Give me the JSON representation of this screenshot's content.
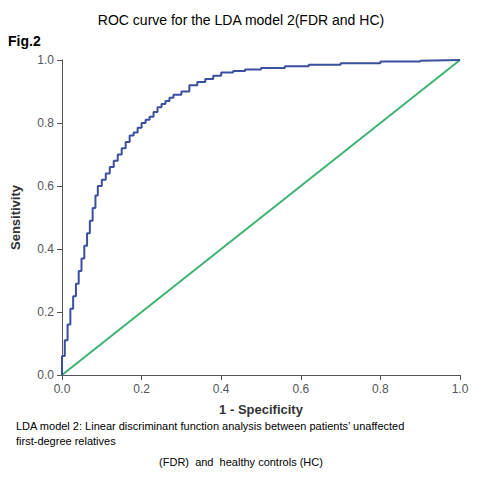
{
  "chart_data": {
    "type": "line",
    "title": "ROC curve for the LDA model 2(FDR and HC)",
    "xlabel": "1 - Specificity",
    "ylabel": "Sensitivity",
    "annotations": [
      "Fig.2",
      "LDA model 2: Linear discriminant function analysis between patients’ unaffected first-degree relatives",
      "(FDR)  and  healthy controls (HC)"
    ],
    "xlim": [
      0.0,
      1.0
    ],
    "ylim": [
      0.0,
      1.0
    ],
    "xticks": [
      {
        "value": 0.0,
        "label": "0.0"
      },
      0.2,
      0.4,
      0.6,
      0.8,
      {
        "value": 1.0,
        "label": "1.0"
      }
    ],
    "yticks": [
      {
        "value": 0.0,
        "label": "0.0"
      },
      0.2,
      0.4,
      0.6,
      0.8,
      {
        "value": 1.0,
        "label": "1.0"
      }
    ],
    "grid": false,
    "series": [
      {
        "color": "#3cb371",
        "x": [
          0,
          1
        ],
        "values": [
          0,
          1
        ]
      },
      {
        "color": "#3a4fa0",
        "x": [
          0.0,
          0.0,
          0.007,
          0.007,
          0.014,
          0.014,
          0.021,
          0.021,
          0.028,
          0.028,
          0.035,
          0.035,
          0.042,
          0.042,
          0.049,
          0.049,
          0.056,
          0.056,
          0.063,
          0.063,
          0.07,
          0.07,
          0.077,
          0.077,
          0.084,
          0.084,
          0.09,
          0.09,
          0.1,
          0.1,
          0.11,
          0.11,
          0.12,
          0.12,
          0.13,
          0.13,
          0.14,
          0.14,
          0.15,
          0.15,
          0.16,
          0.16,
          0.17,
          0.17,
          0.18,
          0.18,
          0.19,
          0.19,
          0.2,
          0.2,
          0.21,
          0.21,
          0.22,
          0.22,
          0.23,
          0.23,
          0.24,
          0.24,
          0.25,
          0.25,
          0.26,
          0.26,
          0.27,
          0.27,
          0.28,
          0.28,
          0.3,
          0.3,
          0.32,
          0.32,
          0.34,
          0.34,
          0.36,
          0.36,
          0.38,
          0.38,
          0.4,
          0.4,
          0.43,
          0.43,
          0.46,
          0.46,
          0.5,
          0.5,
          0.56,
          0.56,
          0.62,
          0.62,
          0.7,
          0.7,
          0.8,
          0.8,
          0.9,
          0.9,
          1.0
        ],
        "values": [
          0.0,
          0.06,
          0.06,
          0.11,
          0.11,
          0.16,
          0.16,
          0.21,
          0.21,
          0.25,
          0.25,
          0.29,
          0.29,
          0.33,
          0.33,
          0.37,
          0.37,
          0.41,
          0.41,
          0.45,
          0.45,
          0.49,
          0.49,
          0.53,
          0.53,
          0.57,
          0.57,
          0.6,
          0.6,
          0.62,
          0.62,
          0.64,
          0.64,
          0.66,
          0.66,
          0.68,
          0.68,
          0.7,
          0.7,
          0.72,
          0.72,
          0.74,
          0.74,
          0.76,
          0.76,
          0.77,
          0.77,
          0.785,
          0.785,
          0.8,
          0.8,
          0.81,
          0.81,
          0.82,
          0.82,
          0.835,
          0.835,
          0.85,
          0.85,
          0.86,
          0.86,
          0.87,
          0.87,
          0.88,
          0.88,
          0.89,
          0.89,
          0.9,
          0.9,
          0.92,
          0.92,
          0.93,
          0.93,
          0.94,
          0.94,
          0.95,
          0.95,
          0.96,
          0.96,
          0.965,
          0.965,
          0.97,
          0.97,
          0.975,
          0.975,
          0.98,
          0.98,
          0.985,
          0.985,
          0.99,
          0.99,
          0.995,
          0.995,
          0.998,
          1.0
        ]
      }
    ]
  }
}
